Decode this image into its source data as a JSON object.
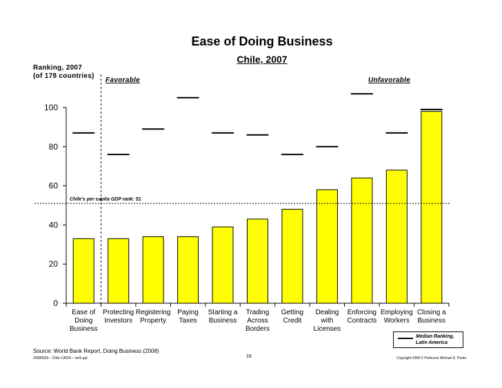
{
  "header": {
    "title": "Ease of Doing Business",
    "subtitle": "Chile, 2007"
  },
  "annotations": {
    "ylabel_line1": "Ranking, 2007",
    "ylabel_line2": "(of 178 countries)",
    "favorable": "Favorable",
    "unfavorable": "Unfavorable",
    "reference_label": "Chile’s per capita GDP rank: 51"
  },
  "legend": {
    "line1": "Median Ranking,",
    "line2": "Latin America"
  },
  "footer": {
    "source": "Source: World Bank Report, Doing Business (2008)",
    "file": "20080529 – Chile CAON – ver5.ppt",
    "page": "16",
    "copyright": "Copyright 2008 © Professor Michael E. Porter"
  },
  "chart_data": {
    "type": "bar",
    "title": "Ease of Doing Business",
    "subtitle": "Chile, 2007",
    "ylabel": "Ranking, 2007 (of 178 countries)",
    "ylim": [
      0,
      100
    ],
    "yticks": [
      0,
      20,
      40,
      60,
      80,
      100
    ],
    "grid": false,
    "bar_color": "#ffff00",
    "categories": [
      [
        "Ease of",
        "Doing",
        "Business"
      ],
      [
        "Protecting",
        "Investors"
      ],
      [
        "Registering",
        "Property"
      ],
      [
        "Paying",
        "Taxes"
      ],
      [
        "Starting a",
        "Business"
      ],
      [
        "Trading",
        "Across",
        "Borders"
      ],
      [
        "Getting",
        "Credit"
      ],
      [
        "Dealing",
        "with",
        "Licenses"
      ],
      [
        "Enforcing",
        "Contracts"
      ],
      [
        "Employing",
        "Workers"
      ],
      [
        "Closing a",
        "Business"
      ]
    ],
    "series": [
      {
        "name": "Chile",
        "values": [
          33,
          33,
          34,
          34,
          39,
          43,
          48,
          58,
          64,
          68,
          98
        ]
      },
      {
        "name": "Median Ranking, Latin America",
        "values": [
          87,
          76,
          89,
          105,
          87,
          86,
          76,
          80,
          107,
          87,
          99
        ]
      }
    ],
    "reference_line": {
      "value": 51,
      "label": "Chile’s per capita GDP rank: 51"
    },
    "divider_after_category": 0,
    "legend_position": "bottom-right"
  }
}
